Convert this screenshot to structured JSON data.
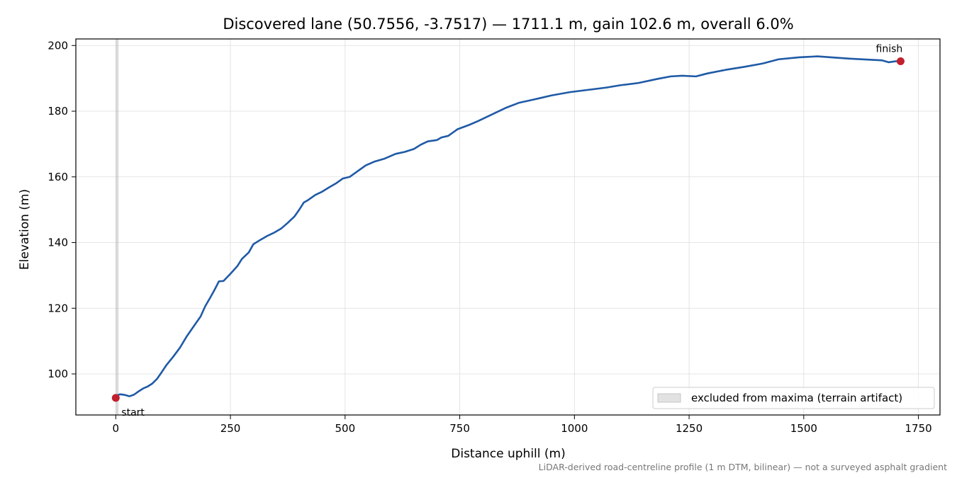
{
  "chart_data": {
    "type": "line",
    "title": "Discovered lane (50.7556, -3.7517) — 1711.1 m, gain 102.6 m, overall 6.0%",
    "xlabel": "Distance uphill (m)",
    "ylabel": "Elevation (m)",
    "xlim": [
      -87,
      1797
    ],
    "ylim": [
      87.5,
      202
    ],
    "x_ticks": [
      0,
      250,
      500,
      750,
      1000,
      1250,
      1500,
      1750
    ],
    "y_ticks": [
      100,
      120,
      140,
      160,
      180,
      200
    ],
    "x_tick_labels": [
      "0",
      "250",
      "500",
      "750",
      "1000",
      "1250",
      "1500",
      "1750"
    ],
    "y_tick_labels": [
      "100",
      "120",
      "140",
      "160",
      "180",
      "200"
    ],
    "grid": true,
    "legend_position": "lower-right",
    "excluded_band": {
      "x": [
        0,
        6
      ],
      "legend_label": "excluded from maxima (terrain artifact)"
    },
    "series": [
      {
        "color": "#1f5aa6",
        "points": [
          [
            0,
            92.7
          ],
          [
            5,
            93.6
          ],
          [
            10,
            93.8
          ],
          [
            20,
            93.6
          ],
          [
            30,
            93.2
          ],
          [
            40,
            93.7
          ],
          [
            50,
            94.7
          ],
          [
            60,
            95.6
          ],
          [
            70,
            96.2
          ],
          [
            80,
            97.1
          ],
          [
            90,
            98.5
          ],
          [
            100,
            100.5
          ],
          [
            110,
            102.6
          ],
          [
            125,
            105.2
          ],
          [
            140,
            108.0
          ],
          [
            155,
            111.5
          ],
          [
            170,
            114.5
          ],
          [
            185,
            117.5
          ],
          [
            195,
            120.6
          ],
          [
            205,
            123.0
          ],
          [
            215,
            125.5
          ],
          [
            225,
            128.2
          ],
          [
            235,
            128.3
          ],
          [
            250,
            130.5
          ],
          [
            265,
            132.8
          ],
          [
            275,
            135.0
          ],
          [
            290,
            137.0
          ],
          [
            300,
            139.5
          ],
          [
            315,
            140.8
          ],
          [
            330,
            142.0
          ],
          [
            345,
            143.0
          ],
          [
            360,
            144.2
          ],
          [
            375,
            146.0
          ],
          [
            390,
            148.0
          ],
          [
            400,
            150.0
          ],
          [
            410,
            152.2
          ],
          [
            420,
            153.0
          ],
          [
            435,
            154.5
          ],
          [
            450,
            155.5
          ],
          [
            465,
            156.8
          ],
          [
            480,
            158.0
          ],
          [
            495,
            159.5
          ],
          [
            510,
            160.0
          ],
          [
            525,
            161.5
          ],
          [
            545,
            163.5
          ],
          [
            565,
            164.7
          ],
          [
            585,
            165.5
          ],
          [
            610,
            167.0
          ],
          [
            630,
            167.6
          ],
          [
            650,
            168.5
          ],
          [
            665,
            169.8
          ],
          [
            680,
            170.8
          ],
          [
            700,
            171.2
          ],
          [
            710,
            172.0
          ],
          [
            725,
            172.5
          ],
          [
            745,
            174.5
          ],
          [
            770,
            175.8
          ],
          [
            790,
            177.0
          ],
          [
            820,
            179.0
          ],
          [
            850,
            181.0
          ],
          [
            880,
            182.6
          ],
          [
            910,
            183.5
          ],
          [
            950,
            184.8
          ],
          [
            990,
            185.8
          ],
          [
            1030,
            186.5
          ],
          [
            1070,
            187.2
          ],
          [
            1100,
            187.9
          ],
          [
            1140,
            188.6
          ],
          [
            1180,
            189.8
          ],
          [
            1210,
            190.6
          ],
          [
            1235,
            190.8
          ],
          [
            1265,
            190.6
          ],
          [
            1290,
            191.5
          ],
          [
            1330,
            192.6
          ],
          [
            1370,
            193.5
          ],
          [
            1410,
            194.5
          ],
          [
            1445,
            195.8
          ],
          [
            1490,
            196.4
          ],
          [
            1530,
            196.7
          ],
          [
            1570,
            196.3
          ],
          [
            1600,
            196.0
          ],
          [
            1640,
            195.7
          ],
          [
            1670,
            195.5
          ],
          [
            1685,
            194.9
          ],
          [
            1700,
            195.2
          ],
          [
            1711,
            195.2
          ]
        ]
      }
    ],
    "markers": [
      {
        "x": 0,
        "y": 92.7,
        "label": "start"
      },
      {
        "x": 1711.1,
        "y": 195.2,
        "label": "finish"
      }
    ],
    "marker_color": "#c0202e",
    "footnote": "LiDAR-derived road-centreline profile (1 m DTM, bilinear) — not a surveyed asphalt gradient"
  }
}
